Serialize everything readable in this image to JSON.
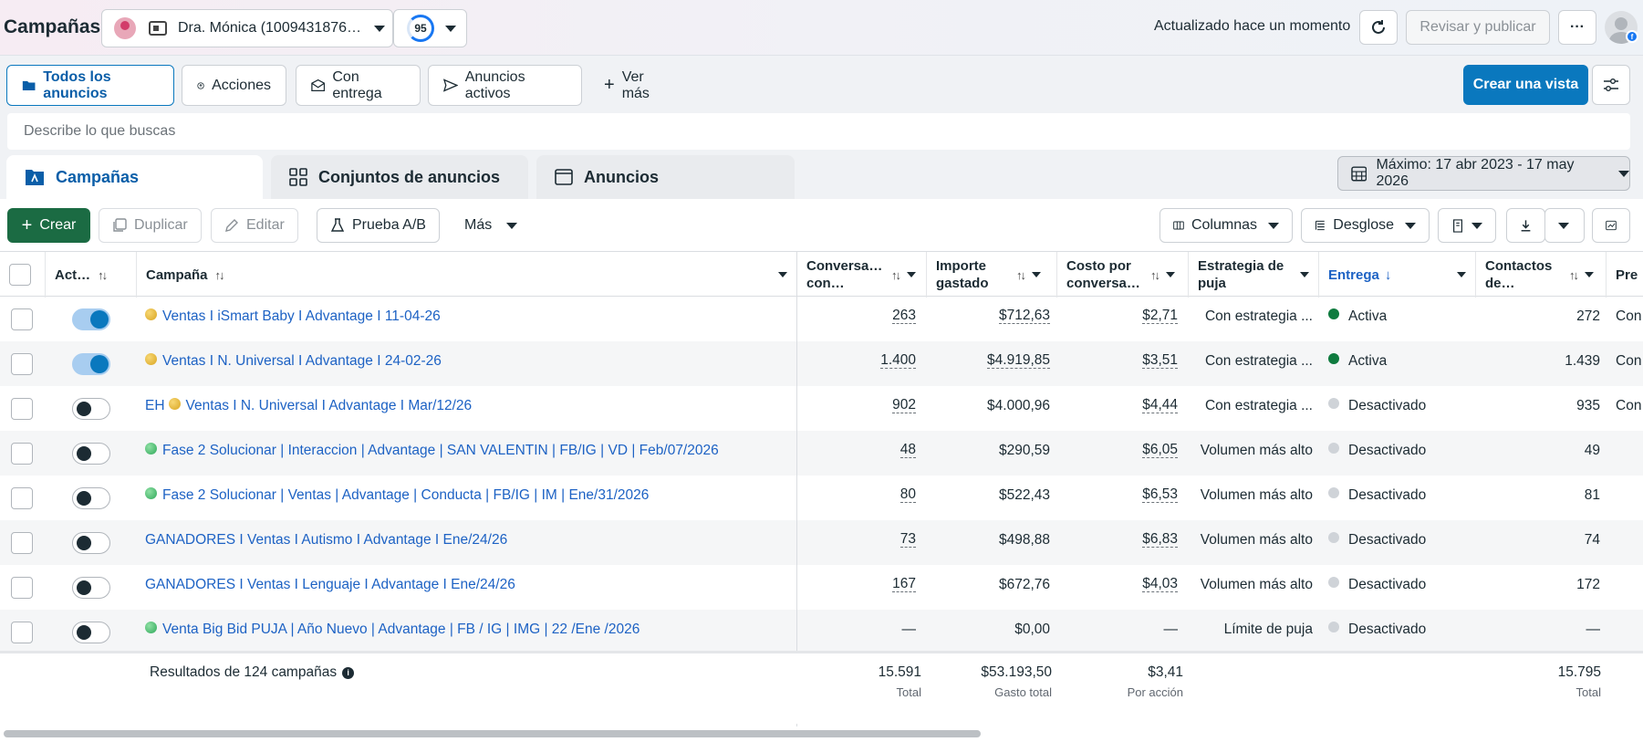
{
  "header": {
    "title": "Campañas",
    "account_name": "Dra. Mónica (1009431876…",
    "score": "95",
    "updated": "Actualizado hace un momento",
    "review_label": "Revisar y publicar",
    "more_label": "···"
  },
  "views": {
    "items": [
      {
        "label": "Todos los anuncios"
      },
      {
        "label": "Acciones"
      },
      {
        "label": "Con entrega"
      },
      {
        "label": "Anuncios activos"
      },
      {
        "label": "Ver más"
      }
    ],
    "create_view": "Crear una vista"
  },
  "search": {
    "placeholder": "Describe lo que buscas"
  },
  "tabs": [
    {
      "label": "Campañas"
    },
    {
      "label": "Conjuntos de anuncios"
    },
    {
      "label": "Anuncios"
    }
  ],
  "date_range": "Máximo: 17 abr 2023 - 17 may 2026",
  "toolbar": {
    "create": "Crear",
    "duplicate": "Duplicar",
    "edit": "Editar",
    "ab_test": "Prueba A/B",
    "more": "Más",
    "columns": "Columnas",
    "breakdown": "Desglose"
  },
  "columns": {
    "active": "Act…",
    "campaign": "Campaña",
    "conversations": "Conversa… con…",
    "spend": "Importe gastado",
    "cost": "Costo por conversa…",
    "bid": "Estrategia de puja",
    "delivery": "Entrega",
    "contacts": "Contactos de…",
    "pre": "Pre"
  },
  "rows": [
    {
      "name": "Ventas I iSmart Baby I Advantage I 11-04-26",
      "prefix": "",
      "bulb": "yellow",
      "on": true,
      "conv": "263",
      "spend": "$712,63",
      "cost": "$2,71",
      "bid": "Con estrategia ...",
      "delivery": "Activa",
      "status": "active",
      "contacts": "272",
      "pre": "Con"
    },
    {
      "name": "Ventas I N. Universal I Advantage I 24-02-26",
      "prefix": "",
      "bulb": "yellow",
      "on": true,
      "conv": "1.400",
      "spend": "$4.919,85",
      "cost": "$3,51",
      "bid": "Con estrategia ...",
      "delivery": "Activa",
      "status": "active",
      "contacts": "1.439",
      "pre": "Con"
    },
    {
      "name": "Ventas I N. Universal I Advantage I Mar/12/26",
      "prefix": "EH",
      "bulb": "yellow",
      "on": false,
      "conv": "902",
      "spend": "$4.000,96",
      "cost": "$4,44",
      "bid": "Con estrategia ...",
      "delivery": "Desactivado",
      "status": "off",
      "contacts": "935",
      "pre": "Con"
    },
    {
      "name": "Fase 2 Solucionar | Interaccion | Advantage | SAN VALENTIN | FB/IG | VD | Feb/07/2026",
      "prefix": "",
      "bulb": "green",
      "on": false,
      "conv": "48",
      "spend": "$290,59",
      "cost": "$6,05",
      "bid": "Volumen más alto",
      "delivery": "Desactivado",
      "status": "off",
      "contacts": "49",
      "pre": ""
    },
    {
      "name": "Fase 2 Solucionar | Ventas | Advantage | Conducta | FB/IG | IM | Ene/31/2026",
      "prefix": "",
      "bulb": "green",
      "on": false,
      "conv": "80",
      "spend": "$522,43",
      "cost": "$6,53",
      "bid": "Volumen más alto",
      "delivery": "Desactivado",
      "status": "off",
      "contacts": "81",
      "pre": ""
    },
    {
      "name": "GANADORES I Ventas I Autismo I Advantage I Ene/24/26",
      "prefix": "",
      "bulb": "",
      "on": false,
      "conv": "73",
      "spend": "$498,88",
      "cost": "$6,83",
      "bid": "Volumen más alto",
      "delivery": "Desactivado",
      "status": "off",
      "contacts": "74",
      "pre": ""
    },
    {
      "name": "GANADORES I Ventas I Lenguaje I Advantage I Ene/24/26",
      "prefix": "",
      "bulb": "",
      "on": false,
      "conv": "167",
      "spend": "$672,76",
      "cost": "$4,03",
      "bid": "Volumen más alto",
      "delivery": "Desactivado",
      "status": "off",
      "contacts": "172",
      "pre": ""
    },
    {
      "name": "Venta Big Bid PUJA | Año Nuevo | Advantage | FB / IG | IMG | 22 /Ene /2026",
      "prefix": "",
      "bulb": "green",
      "on": false,
      "conv": "—",
      "spend": "$0,00",
      "cost": "—",
      "bid": "Límite de puja",
      "delivery": "Desactivado",
      "status": "off",
      "contacts": "—",
      "pre": ""
    }
  ],
  "footer": {
    "results": "Resultados de 124 campañas",
    "conv_total": "15.591",
    "conv_label": "Total",
    "spend_total": "$53.193,50",
    "spend_label": "Gasto total",
    "cost_total": "$3,41",
    "cost_label": "Por acción",
    "contacts_total": "15.795",
    "contacts_label": "Total"
  },
  "colors": {
    "accent": "#0a78be",
    "create": "#1b6b43",
    "active": "#0f7b3f",
    "off": "#cfd3d8",
    "link": "#1d62c4"
  }
}
